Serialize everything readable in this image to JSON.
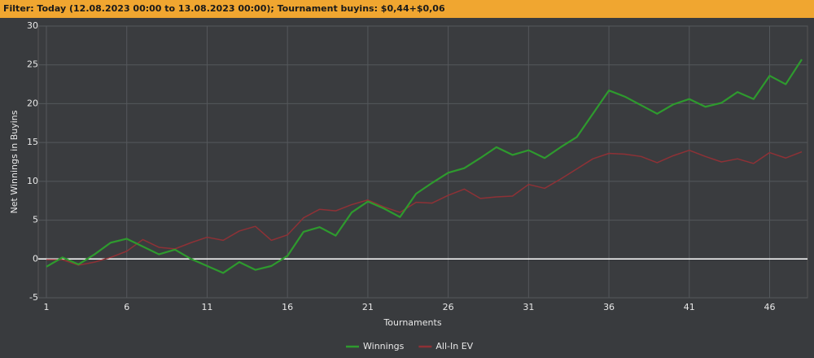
{
  "filter": "Filter: Today (12.08.2023 00:00 to 13.08.2023 00:00); Tournament buyins: $0,44+$0,06",
  "chart_data": {
    "type": "line",
    "xlabel": "Tournaments",
    "ylabel": "Net Winnings in Buyins",
    "x": [
      1,
      2,
      3,
      4,
      5,
      6,
      7,
      8,
      9,
      10,
      11,
      12,
      13,
      14,
      15,
      16,
      17,
      18,
      19,
      20,
      21,
      22,
      23,
      24,
      25,
      26,
      27,
      28,
      29,
      30,
      31,
      32,
      33,
      34,
      35,
      36,
      37,
      38,
      39,
      40,
      41,
      42,
      43,
      44,
      45,
      46,
      47,
      48
    ],
    "series": [
      {
        "name": "Winnings",
        "color": "#2e9a2e",
        "width": 2.2,
        "values": [
          -1.0,
          0.2,
          -0.7,
          0.6,
          2.1,
          2.6,
          1.6,
          0.6,
          1.2,
          0.0,
          -0.9,
          -1.8,
          -0.4,
          -1.4,
          -0.9,
          0.4,
          3.5,
          4.1,
          3.0,
          6.0,
          7.4,
          6.5,
          5.4,
          8.4,
          9.8,
          11.1,
          11.7,
          13.0,
          14.4,
          13.4,
          14.0,
          13.0,
          14.4,
          15.7,
          18.7,
          21.7,
          20.9,
          19.8,
          18.7,
          19.9,
          20.6,
          19.6,
          20.1,
          21.5,
          20.6,
          23.6,
          22.5,
          25.7
        ]
      },
      {
        "name": "All-In EV",
        "color": "#8e3136",
        "width": 1.5,
        "values": [
          -0.1,
          -0.1,
          -0.8,
          -0.4,
          0.2,
          1.0,
          2.5,
          1.5,
          1.3,
          2.1,
          2.8,
          2.4,
          3.6,
          4.2,
          2.4,
          3.1,
          5.3,
          6.4,
          6.2,
          7.0,
          7.6,
          6.7,
          6.0,
          7.3,
          7.2,
          8.2,
          9.0,
          7.8,
          8.0,
          8.1,
          9.6,
          9.1,
          10.3,
          11.6,
          12.9,
          13.6,
          13.5,
          13.2,
          12.4,
          13.3,
          14.0,
          13.2,
          12.5,
          12.9,
          12.3,
          13.7,
          13.0,
          13.8
        ]
      }
    ],
    "xlim": [
      1,
      48
    ],
    "xticks": [
      1,
      6,
      11,
      16,
      21,
      26,
      31,
      36,
      41,
      46
    ],
    "ylim": [
      -5,
      30
    ],
    "yticks": [
      -5,
      0,
      5,
      10,
      15,
      20,
      25,
      30
    ],
    "grid": true,
    "zero_line_color": "#ffffff",
    "legend": "bottom"
  }
}
